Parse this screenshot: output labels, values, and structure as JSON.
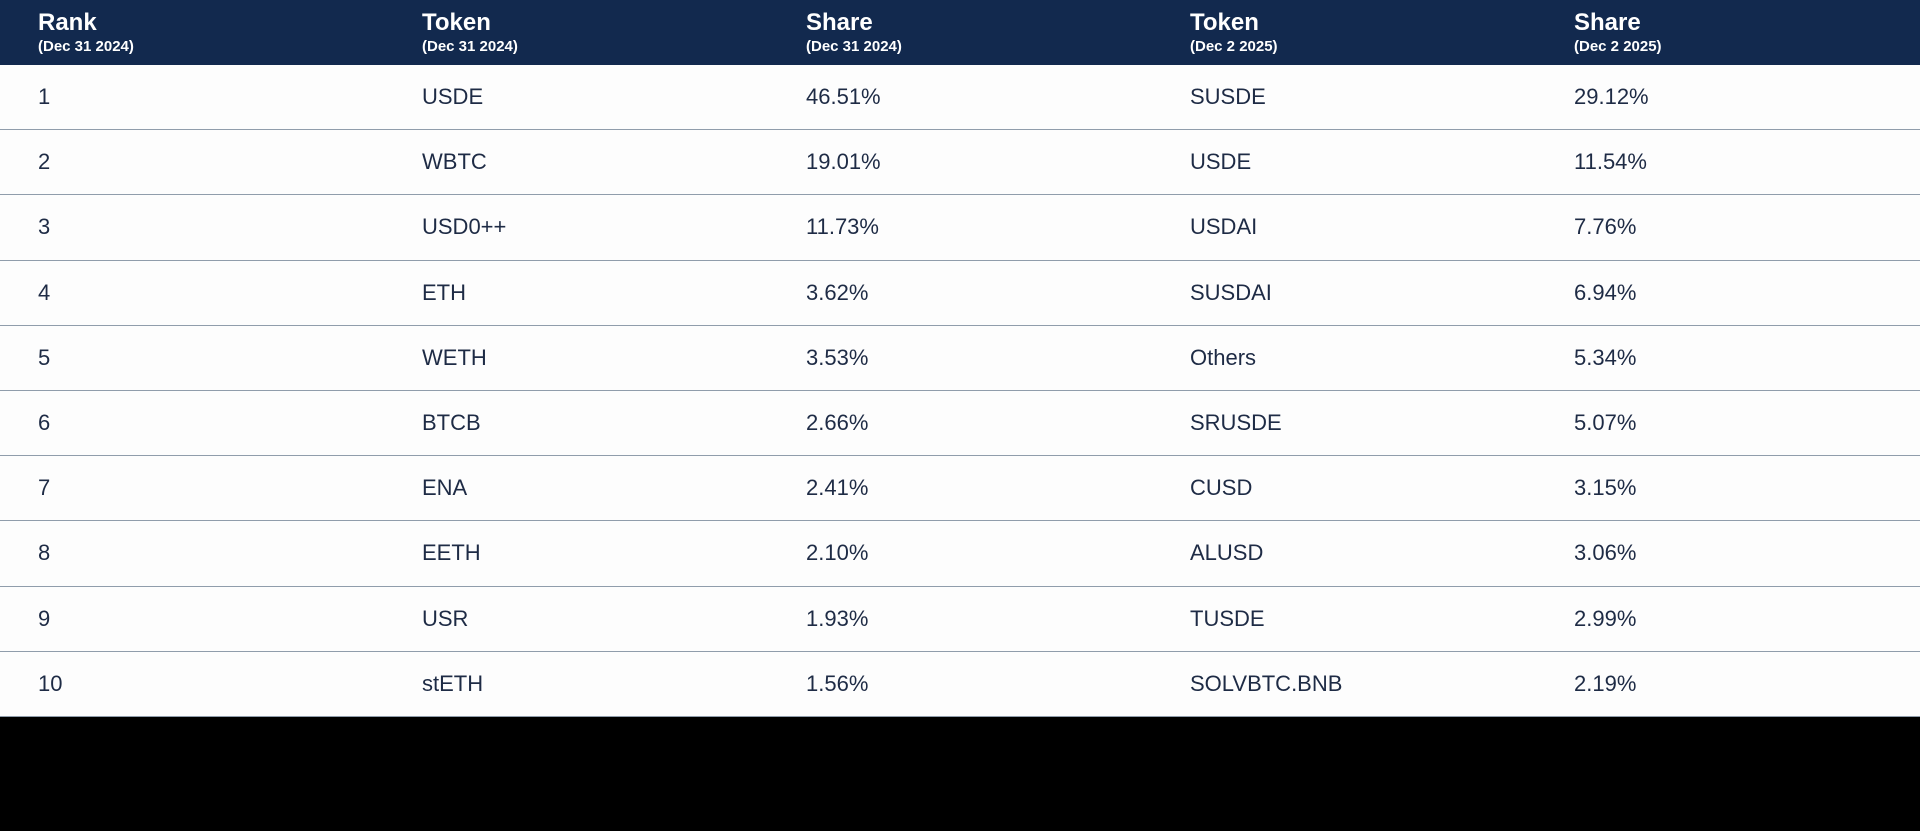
{
  "table": {
    "columns": [
      {
        "label": "Rank",
        "sublabel": "(Dec 31 2024)"
      },
      {
        "label": "Token",
        "sublabel": "(Dec 31 2024)"
      },
      {
        "label": "Share",
        "sublabel": "(Dec 31 2024)"
      },
      {
        "label": "Token",
        "sublabel": "(Dec 2 2025)"
      },
      {
        "label": "Share",
        "sublabel": "(Dec 2 2025)"
      }
    ],
    "rows": [
      [
        "1",
        "USDE",
        "46.51%",
        "SUSDE",
        "29.12%"
      ],
      [
        "2",
        "WBTC",
        "19.01%",
        "USDE",
        "11.54%"
      ],
      [
        "3",
        "USD0++",
        "11.73%",
        "USDAI",
        "7.76%"
      ],
      [
        "4",
        "ETH",
        "3.62%",
        "SUSDAI",
        "6.94%"
      ],
      [
        "5",
        "WETH",
        "3.53%",
        "Others",
        "5.34%"
      ],
      [
        "6",
        "BTCB",
        "2.66%",
        "SRUSDE",
        "5.07%"
      ],
      [
        "7",
        "ENA",
        "2.41%",
        "CUSD",
        "3.15%"
      ],
      [
        "8",
        "EETH",
        "2.10%",
        "ALUSD",
        "3.06%"
      ],
      [
        "9",
        "USR",
        "1.93%",
        "TUSDE",
        "2.99%"
      ],
      [
        "10",
        "stETH",
        "1.56%",
        "SOLVBTC.BNB",
        "2.19%"
      ]
    ]
  },
  "chart_data": {
    "type": "table",
    "columns": [
      "Rank (Dec 31 2024)",
      "Token (Dec 31 2024)",
      "Share (Dec 31 2024)",
      "Token (Dec 2 2025)",
      "Share (Dec 2 2025)"
    ],
    "series": [
      {
        "name": "Share (Dec 31 2024)",
        "tokens": [
          "USDE",
          "WBTC",
          "USD0++",
          "ETH",
          "WETH",
          "BTCB",
          "ENA",
          "EETH",
          "USR",
          "stETH"
        ],
        "values": [
          46.51,
          19.01,
          11.73,
          3.62,
          3.53,
          2.66,
          2.41,
          2.1,
          1.93,
          1.56
        ]
      },
      {
        "name": "Share (Dec 2 2025)",
        "tokens": [
          "SUSDE",
          "USDE",
          "USDAI",
          "SUSDAI",
          "Others",
          "SRUSDE",
          "CUSD",
          "ALUSD",
          "TUSDE",
          "SOLVBTC.BNB"
        ],
        "values": [
          29.12,
          11.54,
          7.76,
          6.94,
          5.34,
          5.07,
          3.15,
          3.06,
          2.99,
          2.19
        ]
      }
    ]
  },
  "colors": {
    "header_bg": "#12294e",
    "header_text": "#ffffff",
    "row_bg": "#fdfdfd",
    "cell_text": "#1e2b45",
    "divider": "#909dab",
    "footer_bg": "#000000"
  }
}
